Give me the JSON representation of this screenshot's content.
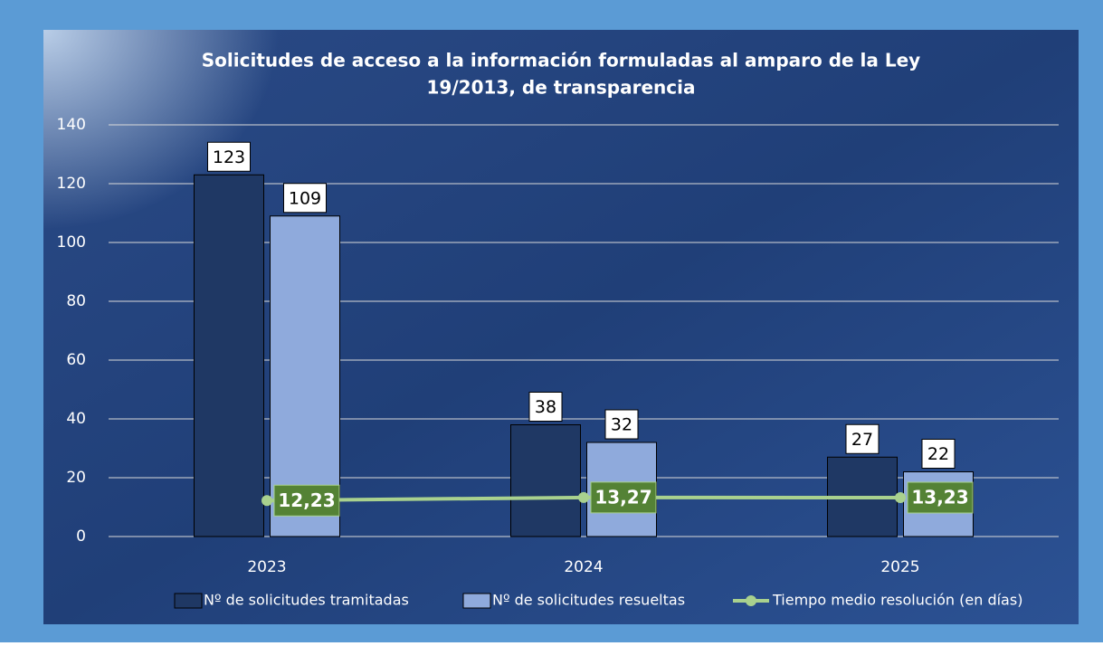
{
  "chart_data": {
    "type": "bar",
    "title": [
      "Solicitudes de acceso a la información formuladas al amparo de la Ley",
      "19/2013, de transparencia"
    ],
    "categories": [
      "2023",
      "2024",
      "2025"
    ],
    "series": [
      {
        "name": "Nº de solicitudes tramitadas",
        "color": "#1f3864",
        "values": [
          123,
          38,
          27
        ]
      },
      {
        "name": "Nº de solicitudes resueltas",
        "color": "#8faadc",
        "values": [
          109,
          32,
          22
        ]
      },
      {
        "name": "Tiempo medio resolución (en días)",
        "type": "line",
        "color": "#a9d18e",
        "values": [
          12.23,
          13.27,
          13.23
        ],
        "value_labels": [
          "12,23",
          "13,27",
          "13,23"
        ]
      }
    ],
    "ylim": [
      0,
      140
    ],
    "yticks": [
      0,
      20,
      40,
      60,
      80,
      100,
      120,
      140
    ],
    "grid": true,
    "legend": "bottom"
  }
}
